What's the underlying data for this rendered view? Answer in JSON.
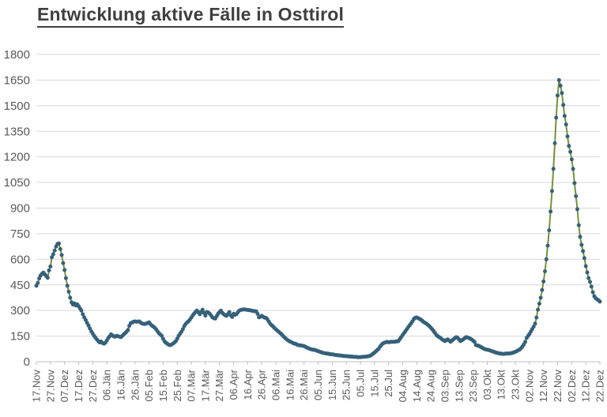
{
  "title": "Entwicklung aktive Fälle in Osttirol",
  "colors": {
    "line": "#76923a",
    "marker": "#35617a",
    "grid": "#d9d9d9",
    "axis_line": "#bfbfbf",
    "axis_text": "#595959",
    "title_text": "#3f3f3f",
    "background": "#ffffff"
  },
  "chart_data": {
    "type": "line",
    "title": "Entwicklung aktive Fälle in Osttirol",
    "legend": "none",
    "grid": "horizontal",
    "marker_style": "dot",
    "ylim": [
      0,
      1800
    ],
    "y_tick_step": 150,
    "y_ticks": [
      0,
      150,
      300,
      450,
      600,
      750,
      900,
      1050,
      1200,
      1350,
      1500,
      1650,
      1800
    ],
    "x_tick_interval_days": 10,
    "x_tick_labels": [
      "17.Nov",
      "27.Nov",
      "07.Dez",
      "17.Dez",
      "27.Dez",
      "06.Jän",
      "16.Jän",
      "26.Jän",
      "05.Feb",
      "15.Feb",
      "25.Feb",
      "07.Mär",
      "17.Mär",
      "27.Mär",
      "06.Apr",
      "16.Apr",
      "26.Apr",
      "06.Mai",
      "16.Mai",
      "26.Mai",
      "05.Jun",
      "15.Jun",
      "25.Jun",
      "05.Jul",
      "15.Jul",
      "25.Jul",
      "04.Aug",
      "14.Aug",
      "24.Aug",
      "03.Sep",
      "13.Sep",
      "23.Sep",
      "03.Okt",
      "13.Okt",
      "23.Okt",
      "02.Nov",
      "12.Nov",
      "22.Nov",
      "02.Dez",
      "12.Dez",
      "22.Dez"
    ],
    "series": [
      {
        "values": [
          445,
          462,
          488,
          505,
          515,
          522,
          512,
          502,
          492,
          535,
          558,
          612,
          630,
          652,
          675,
          690,
          693,
          660,
          625,
          578,
          537,
          490,
          445,
          410,
          375,
          348,
          335,
          342,
          330,
          336,
          325,
          312,
          300,
          278,
          260,
          245,
          228,
          212,
          195,
          178,
          165,
          152,
          140,
          130,
          121,
          113,
          118,
          109,
          106,
          111,
          124,
          138,
          149,
          160,
          154,
          149,
          147,
          152,
          150,
          146,
          144,
          151,
          160,
          167,
          176,
          186,
          210,
          226,
          230,
          234,
          236,
          234,
          235,
          236,
          230,
          224,
          222,
          221,
          223,
          227,
          231,
          220,
          211,
          207,
          199,
          190,
          178,
          167,
          159,
          152,
          134,
          119,
          111,
          105,
          99,
          97,
          101,
          106,
          113,
          121,
          135,
          152,
          164,
          176,
          191,
          209,
          221,
          230,
          237,
          247,
          259,
          271,
          282,
          292,
          300,
          290,
          278,
          291,
          305,
          286,
          270,
          291,
          288,
          282,
          271,
          260,
          255,
          253,
          267,
          281,
          291,
          299,
          286,
          278,
          272,
          269,
          279,
          291,
          271,
          262,
          281,
          275,
          278,
          289,
          299,
          303,
          305,
          307,
          306,
          305,
          303,
          302,
          301,
          299,
          297,
          296,
          295,
          281,
          260,
          264,
          269,
          263,
          258,
          257,
          249,
          235,
          222,
          214,
          207,
          198,
          190,
          183,
          176,
          168,
          161,
          152,
          144,
          136,
          129,
          123,
          118,
          115,
          110,
          106,
          105,
          100,
          97,
          96,
          95,
          93,
          92,
          87,
          83,
          79,
          76,
          73,
          71,
          70,
          68,
          65,
          62,
          59,
          56,
          53,
          51,
          49,
          48,
          47,
          45,
          44,
          43,
          42,
          40,
          39,
          38,
          37,
          36,
          35,
          34,
          33,
          33,
          32,
          31,
          30,
          30,
          29,
          28,
          28,
          27,
          27,
          27,
          28,
          28,
          29,
          30,
          31,
          33,
          35,
          40,
          47,
          53,
          61,
          69,
          76,
          89,
          99,
          107,
          111,
          114,
          116,
          114,
          115,
          117,
          116,
          117,
          118,
          119,
          121,
          133,
          145,
          156,
          168,
          179,
          191,
          203,
          214,
          225,
          237,
          251,
          258,
          259,
          255,
          251,
          246,
          239,
          232,
          227,
          222,
          215,
          208,
          199,
          190,
          179,
          168,
          156,
          149,
          144,
          138,
          131,
          126,
          121,
          126,
          131,
          124,
          117,
          124,
          131,
          138,
          144,
          140,
          131,
          121,
          126,
          131,
          138,
          144,
          142,
          139,
          135,
          130,
          123,
          116,
          98,
          95,
          93,
          89,
          84,
          79,
          75,
          72,
          70,
          69,
          66,
          63,
          60,
          57,
          54,
          52,
          50,
          48,
          47,
          46,
          46,
          47,
          48,
          47,
          49,
          50,
          52,
          55,
          58,
          62,
          67,
          71,
          79,
          89,
          101,
          116,
          139,
          151,
          163,
          177,
          191,
          206,
          223,
          259,
          305,
          340,
          375,
          420,
          470,
          530,
          600,
          680,
          770,
          880,
          1000,
          1130,
          1280,
          1430,
          1560,
          1650,
          1617,
          1574,
          1505,
          1440,
          1390,
          1320,
          1264,
          1230,
          1185,
          1130,
          1046,
          970,
          894,
          800,
          732,
          685,
          648,
          607,
          560,
          523,
          490,
          468,
          440,
          407,
          384,
          372,
          366,
          360,
          352
        ]
      }
    ]
  }
}
